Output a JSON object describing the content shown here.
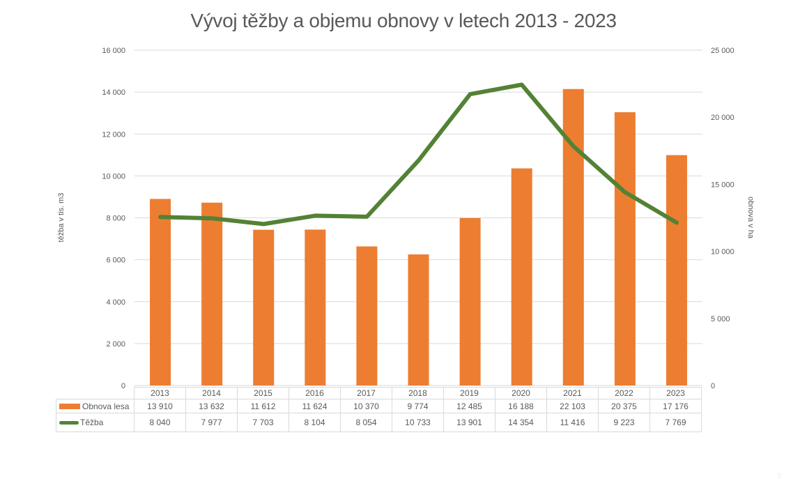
{
  "page": {
    "number": "7"
  },
  "chart_data": {
    "type": "bar+line",
    "title": "Vývoj těžby a objemu obnovy v letech 2013 - 2023",
    "categories": [
      "2013",
      "2014",
      "2015",
      "2016",
      "2017",
      "2018",
      "2019",
      "2020",
      "2021",
      "2022",
      "2023"
    ],
    "series": [
      {
        "name": "Obnova lesa",
        "type": "bar",
        "axis": "right",
        "color": "#ED7D31",
        "values": [
          13910,
          13632,
          11612,
          11624,
          10370,
          9774,
          12485,
          16188,
          22103,
          20375,
          17176
        ],
        "labels": [
          "13 910",
          "13 632",
          "11 612",
          "11 624",
          "10 370",
          "9 774",
          "12 485",
          "16 188",
          "22 103",
          "20 375",
          "17 176"
        ]
      },
      {
        "name": "Těžba",
        "type": "line",
        "axis": "left",
        "color": "#548235",
        "values": [
          8040,
          7977,
          7703,
          8104,
          8054,
          10733,
          13901,
          14354,
          11416,
          9223,
          7769
        ],
        "labels": [
          "8 040",
          "7 977",
          "7 703",
          "8 104",
          "8 054",
          "10 733",
          "13 901",
          "14 354",
          "11 416",
          "9 223",
          "7 769"
        ]
      }
    ],
    "ylabel": "těžba v tis. m3",
    "ylabel_right": "obnova v ha",
    "ylim": [
      0,
      16000
    ],
    "ylim_right": [
      0,
      25000
    ],
    "yticks": [
      "0",
      "2 000",
      "4 000",
      "6 000",
      "8 000",
      "10 000",
      "12 000",
      "14 000",
      "16 000"
    ],
    "yticks_right": [
      "0",
      "5 000",
      "10 000",
      "15 000",
      "20 000",
      "25 000"
    ],
    "grid": true,
    "legend_position": "data-table"
  }
}
